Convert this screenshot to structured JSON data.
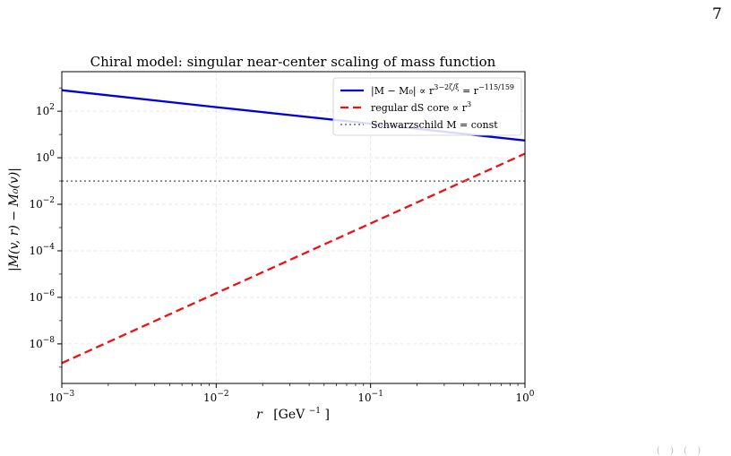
{
  "page": {
    "number": "7",
    "corner_mark": "( ) ( )"
  },
  "chart_data": {
    "type": "line",
    "title": "Chiral model: singular near-center scaling of mass function",
    "xlabel_main": "r",
    "xlabel_unit": "[GeV",
    "xlabel_unit_exp": "−1",
    "xlabel_unit_close": "]",
    "ylabel": "|M(v, r) − M₀(v)|",
    "xscale": "log",
    "yscale": "log",
    "xlim": [
      0.001,
      1
    ],
    "ylim": [
      2e-10,
      5000
    ],
    "grid": true,
    "legend_position": "top-right",
    "x_ticks": [
      {
        "value": 0.001,
        "base": "10",
        "exp": "−3"
      },
      {
        "value": 0.01,
        "base": "10",
        "exp": "−2"
      },
      {
        "value": 0.1,
        "base": "10",
        "exp": "−1"
      },
      {
        "value": 1,
        "base": "10",
        "exp": "0"
      }
    ],
    "y_ticks": [
      {
        "value": 1e-08,
        "base": "10",
        "exp": "−8"
      },
      {
        "value": 1e-06,
        "base": "10",
        "exp": "−6"
      },
      {
        "value": 0.0001,
        "base": "10",
        "exp": "−4"
      },
      {
        "value": 0.01,
        "base": "10",
        "exp": "−2"
      },
      {
        "value": 1,
        "base": "10",
        "exp": "0"
      },
      {
        "value": 100,
        "base": "10",
        "exp": "2"
      }
    ],
    "series": [
      {
        "name": "|M − M₀| ∝ r^(3−2ζ/ξ) = r^(−115/159)",
        "legend_main": "|M − M₀| ∝ r",
        "legend_sup": "3−2ζ/ξ",
        "legend_mid": " = r",
        "legend_sup2": "−115/159",
        "color": "#0000dd",
        "style": "solid",
        "x": [
          0.001,
          0.01,
          0.1,
          1
        ],
        "y": [
          800,
          150,
          29,
          5.5
        ]
      },
      {
        "name": "regular dS core ∝ r^3",
        "legend_main": "regular dS core ∝ r",
        "legend_sup": "3",
        "legend_mid": "",
        "legend_sup2": "",
        "color": "#ee1111",
        "style": "dashed",
        "x": [
          0.001,
          0.01,
          0.1,
          1
        ],
        "y": [
          1.5e-09,
          1.5e-06,
          0.0015,
          1.5
        ]
      },
      {
        "name": "Schwarzschild M = const",
        "legend_main": "Schwarzschild M = const",
        "legend_sup": "",
        "legend_mid": "",
        "legend_sup2": "",
        "color": "#808080",
        "style": "dotted",
        "x": [
          0.001,
          1
        ],
        "y": [
          0.1,
          0.1
        ]
      }
    ]
  }
}
